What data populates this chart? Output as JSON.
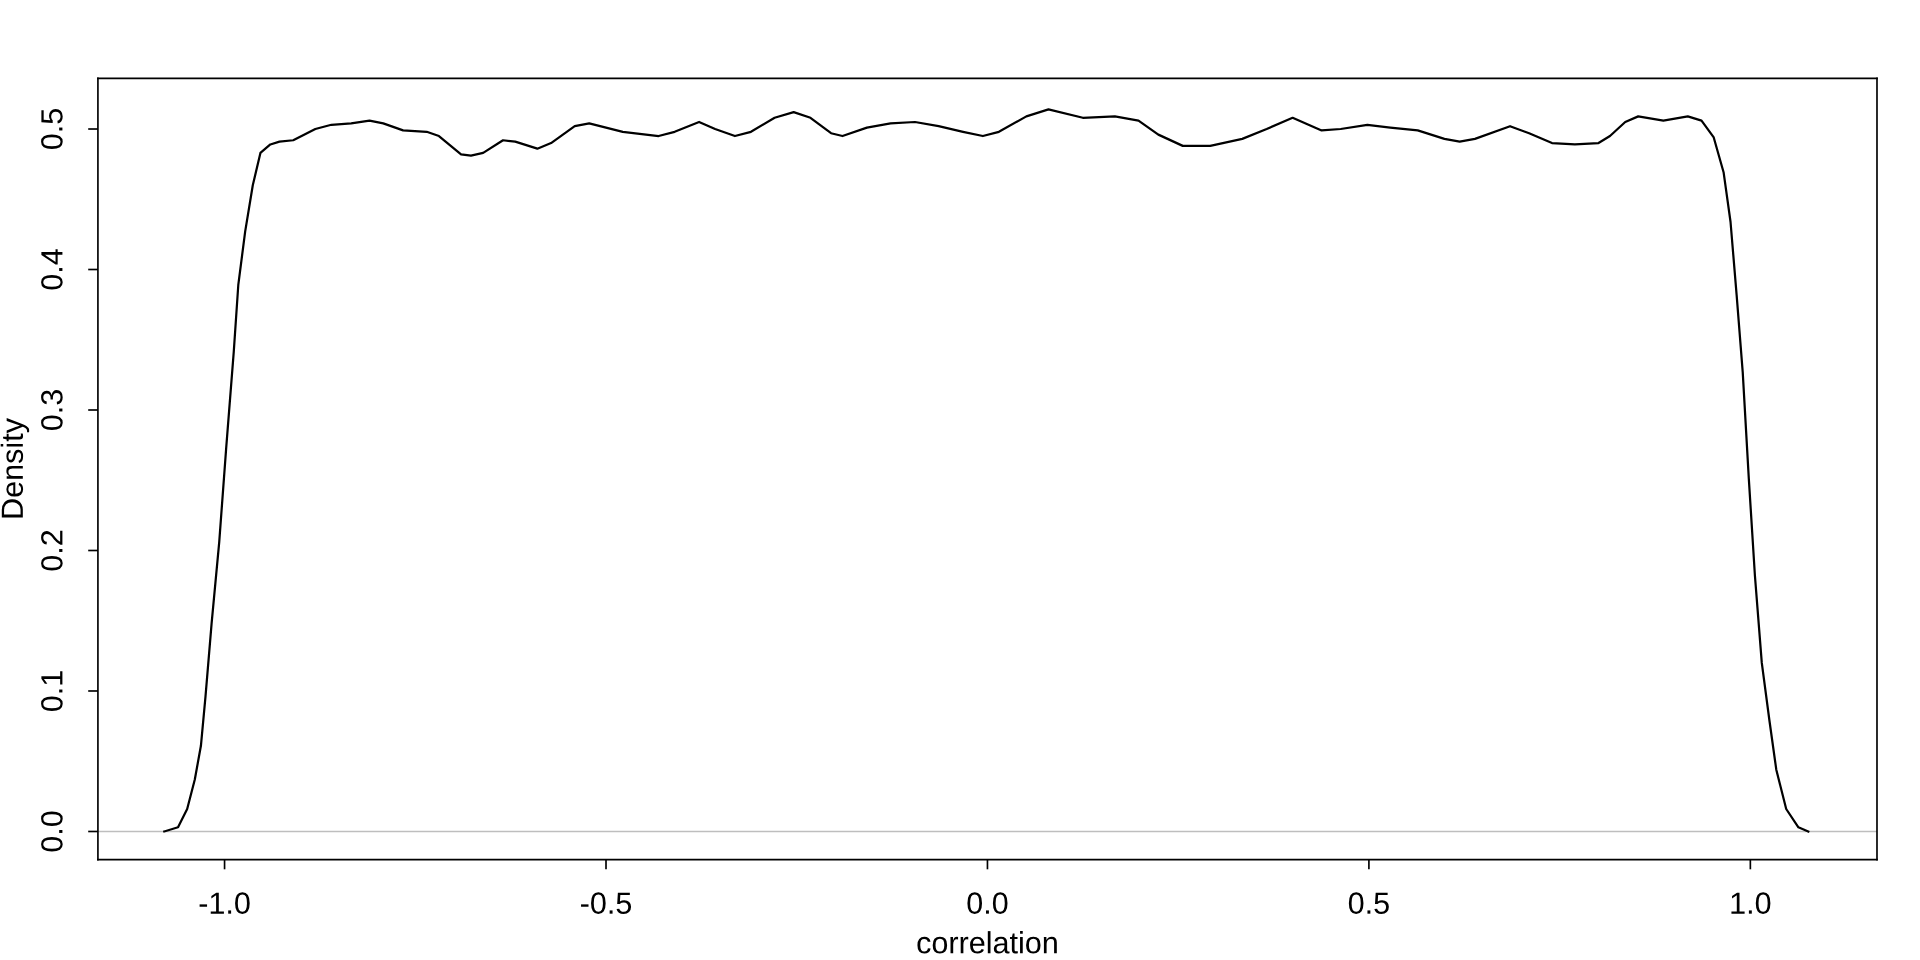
{
  "chart_data": {
    "type": "line",
    "xlabel": "correlation",
    "ylabel": "Density",
    "color": "#000000",
    "line_style": "solid",
    "x": [
      -1.079,
      -1.061,
      -1.049,
      -1.039,
      -1.031,
      -1.025,
      -1.017,
      -1.007,
      -0.998,
      -0.988,
      -0.982,
      -0.973,
      -0.963,
      -0.953,
      -0.94,
      -0.928,
      -0.91,
      -0.881,
      -0.86,
      -0.834,
      -0.81,
      -0.792,
      -0.766,
      -0.735,
      -0.719,
      -0.69,
      -0.677,
      -0.661,
      -0.635,
      -0.619,
      -0.59,
      -0.572,
      -0.541,
      -0.522,
      -0.478,
      -0.431,
      -0.41,
      -0.378,
      -0.357,
      -0.331,
      -0.31,
      -0.279,
      -0.254,
      -0.232,
      -0.205,
      -0.19,
      -0.158,
      -0.127,
      -0.095,
      -0.064,
      -0.032,
      -0.006,
      0.015,
      0.051,
      0.08,
      0.125,
      0.167,
      0.198,
      0.224,
      0.256,
      0.292,
      0.334,
      0.366,
      0.4,
      0.438,
      0.463,
      0.498,
      0.528,
      0.564,
      0.599,
      0.619,
      0.639,
      0.685,
      0.71,
      0.74,
      0.77,
      0.801,
      0.816,
      0.836,
      0.853,
      0.886,
      0.918,
      0.936,
      0.952,
      0.965,
      0.974,
      0.982,
      0.99,
      0.998,
      1.006,
      1.015,
      1.025,
      1.034,
      1.047,
      1.063,
      1.076
    ],
    "values": [
      0.0,
      0.003,
      0.016,
      0.037,
      0.061,
      0.096,
      0.148,
      0.206,
      0.272,
      0.341,
      0.389,
      0.427,
      0.46,
      0.483,
      0.489,
      0.491,
      0.492,
      0.5,
      0.503,
      0.504,
      0.506,
      0.504,
      0.499,
      0.498,
      0.495,
      0.482,
      0.481,
      0.483,
      0.492,
      0.491,
      0.486,
      0.49,
      0.502,
      0.504,
      0.498,
      0.495,
      0.498,
      0.505,
      0.5,
      0.495,
      0.498,
      0.508,
      0.512,
      0.508,
      0.497,
      0.495,
      0.501,
      0.504,
      0.505,
      0.502,
      0.498,
      0.495,
      0.498,
      0.509,
      0.514,
      0.508,
      0.509,
      0.506,
      0.496,
      0.488,
      0.488,
      0.493,
      0.5,
      0.508,
      0.499,
      0.5,
      0.503,
      0.501,
      0.499,
      0.493,
      0.491,
      0.493,
      0.502,
      0.497,
      0.49,
      0.489,
      0.49,
      0.495,
      0.505,
      0.509,
      0.506,
      0.509,
      0.506,
      0.494,
      0.469,
      0.434,
      0.382,
      0.327,
      0.251,
      0.182,
      0.12,
      0.079,
      0.044,
      0.016,
      0.003,
      0.0
    ],
    "xlim": [
      -1.166,
      1.166
    ],
    "ylim": [
      -0.02,
      0.536
    ],
    "xticks": [
      {
        "value": -1,
        "label": "-1.0"
      },
      -0.5,
      {
        "value": 0,
        "label": "0.0"
      },
      0.5,
      {
        "value": 1,
        "label": "1.0"
      }
    ],
    "yticks": [
      {
        "value": 0,
        "label": "0.0"
      },
      0.1,
      0.2,
      0.3,
      0.4,
      0.5
    ],
    "ref_lines": [
      {
        "axis": "y",
        "value": 0,
        "color": "#bebebe"
      }
    ]
  }
}
